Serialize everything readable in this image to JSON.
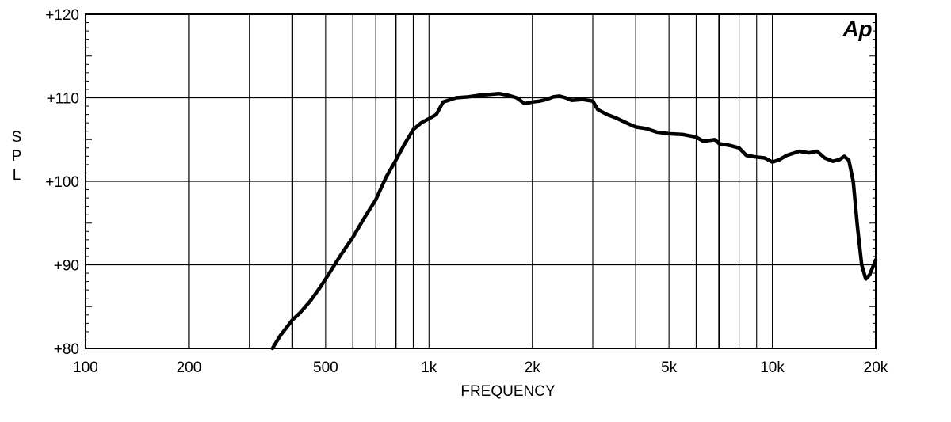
{
  "chart_data": {
    "type": "line",
    "xlabel": "FREQUENCY",
    "ylabel": "SPL",
    "x_scale": "log",
    "xlim": [
      100,
      20000
    ],
    "ylim": [
      80,
      120
    ],
    "grid": true,
    "logo": "Ap",
    "x_ticks": [
      {
        "value": 100,
        "label": "100"
      },
      {
        "value": 200,
        "label": "200"
      },
      {
        "value": 500,
        "label": "500"
      },
      {
        "value": 1000,
        "label": "1k"
      },
      {
        "value": 2000,
        "label": "2k"
      },
      {
        "value": 5000,
        "label": "5k"
      },
      {
        "value": 10000,
        "label": "10k"
      },
      {
        "value": 20000,
        "label": "20k"
      }
    ],
    "y_ticks": [
      {
        "value": 80,
        "label": "+80"
      },
      {
        "value": 90,
        "label": "+90"
      },
      {
        "value": 100,
        "label": "+100"
      },
      {
        "value": 110,
        "label": "+110"
      },
      {
        "value": 120,
        "label": "+120"
      }
    ],
    "x_gridlines": [
      200,
      300,
      400,
      500,
      600,
      700,
      800,
      900,
      1000,
      2000,
      3000,
      4000,
      5000,
      6000,
      7000,
      8000,
      9000,
      10000
    ],
    "series": [
      {
        "color": "#000000",
        "points": [
          [
            350,
            80.0
          ],
          [
            370,
            81.6
          ],
          [
            390,
            82.8
          ],
          [
            400,
            83.4
          ],
          [
            420,
            84.2
          ],
          [
            450,
            85.6
          ],
          [
            480,
            87.2
          ],
          [
            500,
            88.3
          ],
          [
            550,
            91.0
          ],
          [
            600,
            93.3
          ],
          [
            650,
            95.7
          ],
          [
            700,
            97.8
          ],
          [
            750,
            100.5
          ],
          [
            800,
            102.5
          ],
          [
            850,
            104.5
          ],
          [
            900,
            106.2
          ],
          [
            950,
            107.0
          ],
          [
            1000,
            107.5
          ],
          [
            1050,
            108.0
          ],
          [
            1100,
            109.5
          ],
          [
            1200,
            110.0
          ],
          [
            1300,
            110.1
          ],
          [
            1400,
            110.3
          ],
          [
            1500,
            110.4
          ],
          [
            1600,
            110.5
          ],
          [
            1700,
            110.3
          ],
          [
            1800,
            110.0
          ],
          [
            1900,
            109.3
          ],
          [
            2000,
            109.5
          ],
          [
            2100,
            109.6
          ],
          [
            2200,
            109.8
          ],
          [
            2300,
            110.1
          ],
          [
            2400,
            110.2
          ],
          [
            2500,
            110.0
          ],
          [
            2600,
            109.7
          ],
          [
            2800,
            109.8
          ],
          [
            3000,
            109.6
          ],
          [
            3100,
            108.6
          ],
          [
            3300,
            108.0
          ],
          [
            3500,
            107.6
          ],
          [
            3800,
            106.9
          ],
          [
            4000,
            106.5
          ],
          [
            4300,
            106.3
          ],
          [
            4600,
            105.9
          ],
          [
            5000,
            105.7
          ],
          [
            5500,
            105.6
          ],
          [
            6000,
            105.3
          ],
          [
            6300,
            104.8
          ],
          [
            6800,
            105.0
          ],
          [
            7000,
            104.5
          ],
          [
            7500,
            104.3
          ],
          [
            8000,
            104.0
          ],
          [
            8400,
            103.1
          ],
          [
            9000,
            102.9
          ],
          [
            9500,
            102.8
          ],
          [
            10000,
            102.3
          ],
          [
            10500,
            102.6
          ],
          [
            11000,
            103.1
          ],
          [
            12000,
            103.6
          ],
          [
            12800,
            103.4
          ],
          [
            13500,
            103.6
          ],
          [
            14200,
            102.8
          ],
          [
            15000,
            102.4
          ],
          [
            15700,
            102.6
          ],
          [
            16200,
            103.0
          ],
          [
            16700,
            102.5
          ],
          [
            17200,
            100.0
          ],
          [
            17700,
            94.5
          ],
          [
            18200,
            90.0
          ],
          [
            18700,
            88.3
          ],
          [
            19200,
            88.8
          ],
          [
            20000,
            90.6
          ]
        ]
      }
    ]
  }
}
